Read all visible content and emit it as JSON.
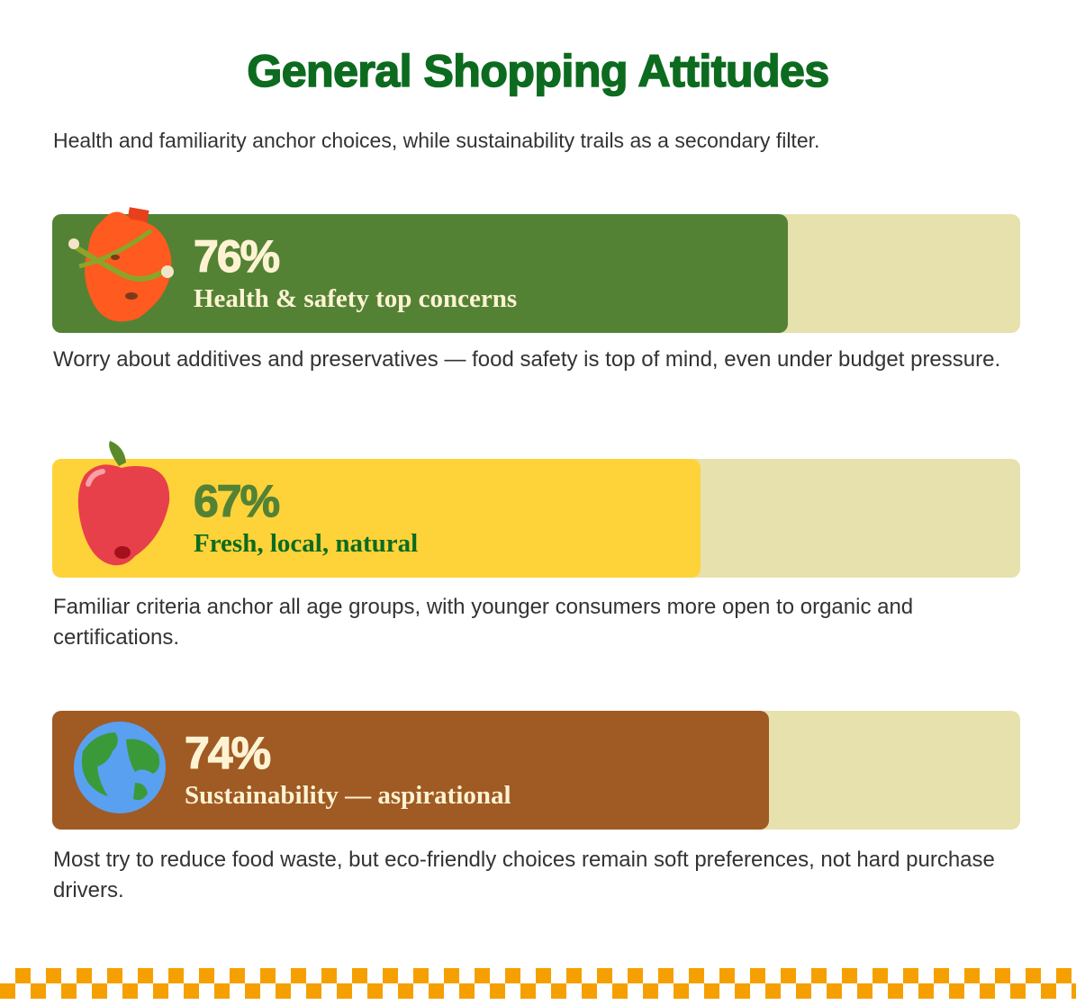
{
  "chart_data": {
    "type": "bar",
    "orientation": "horizontal",
    "title": "General Shopping Attitudes",
    "subtitle": "Health and familiarity anchor choices, while sustainability trails as a secondary filter.",
    "categories": [
      "Health & safety top concerns",
      "Fresh, local, natural",
      "Sustainability — aspirational"
    ],
    "values": [
      76,
      67,
      74
    ],
    "value_labels": [
      "76%",
      "67%",
      "74%"
    ],
    "descriptions": [
      "Worry about additives and preservatives — food safety is top of mind, even under budget pressure.",
      "Familiar criteria anchor all age groups, with younger consumers more open to organic and certifications.",
      "Most try to reduce food waste, but eco-friendly choices remain soft preferences, not hard purchase drivers."
    ],
    "colors": [
      "#548235",
      "#fed33a",
      "#a05a24"
    ],
    "xlim": [
      0,
      100
    ]
  }
}
